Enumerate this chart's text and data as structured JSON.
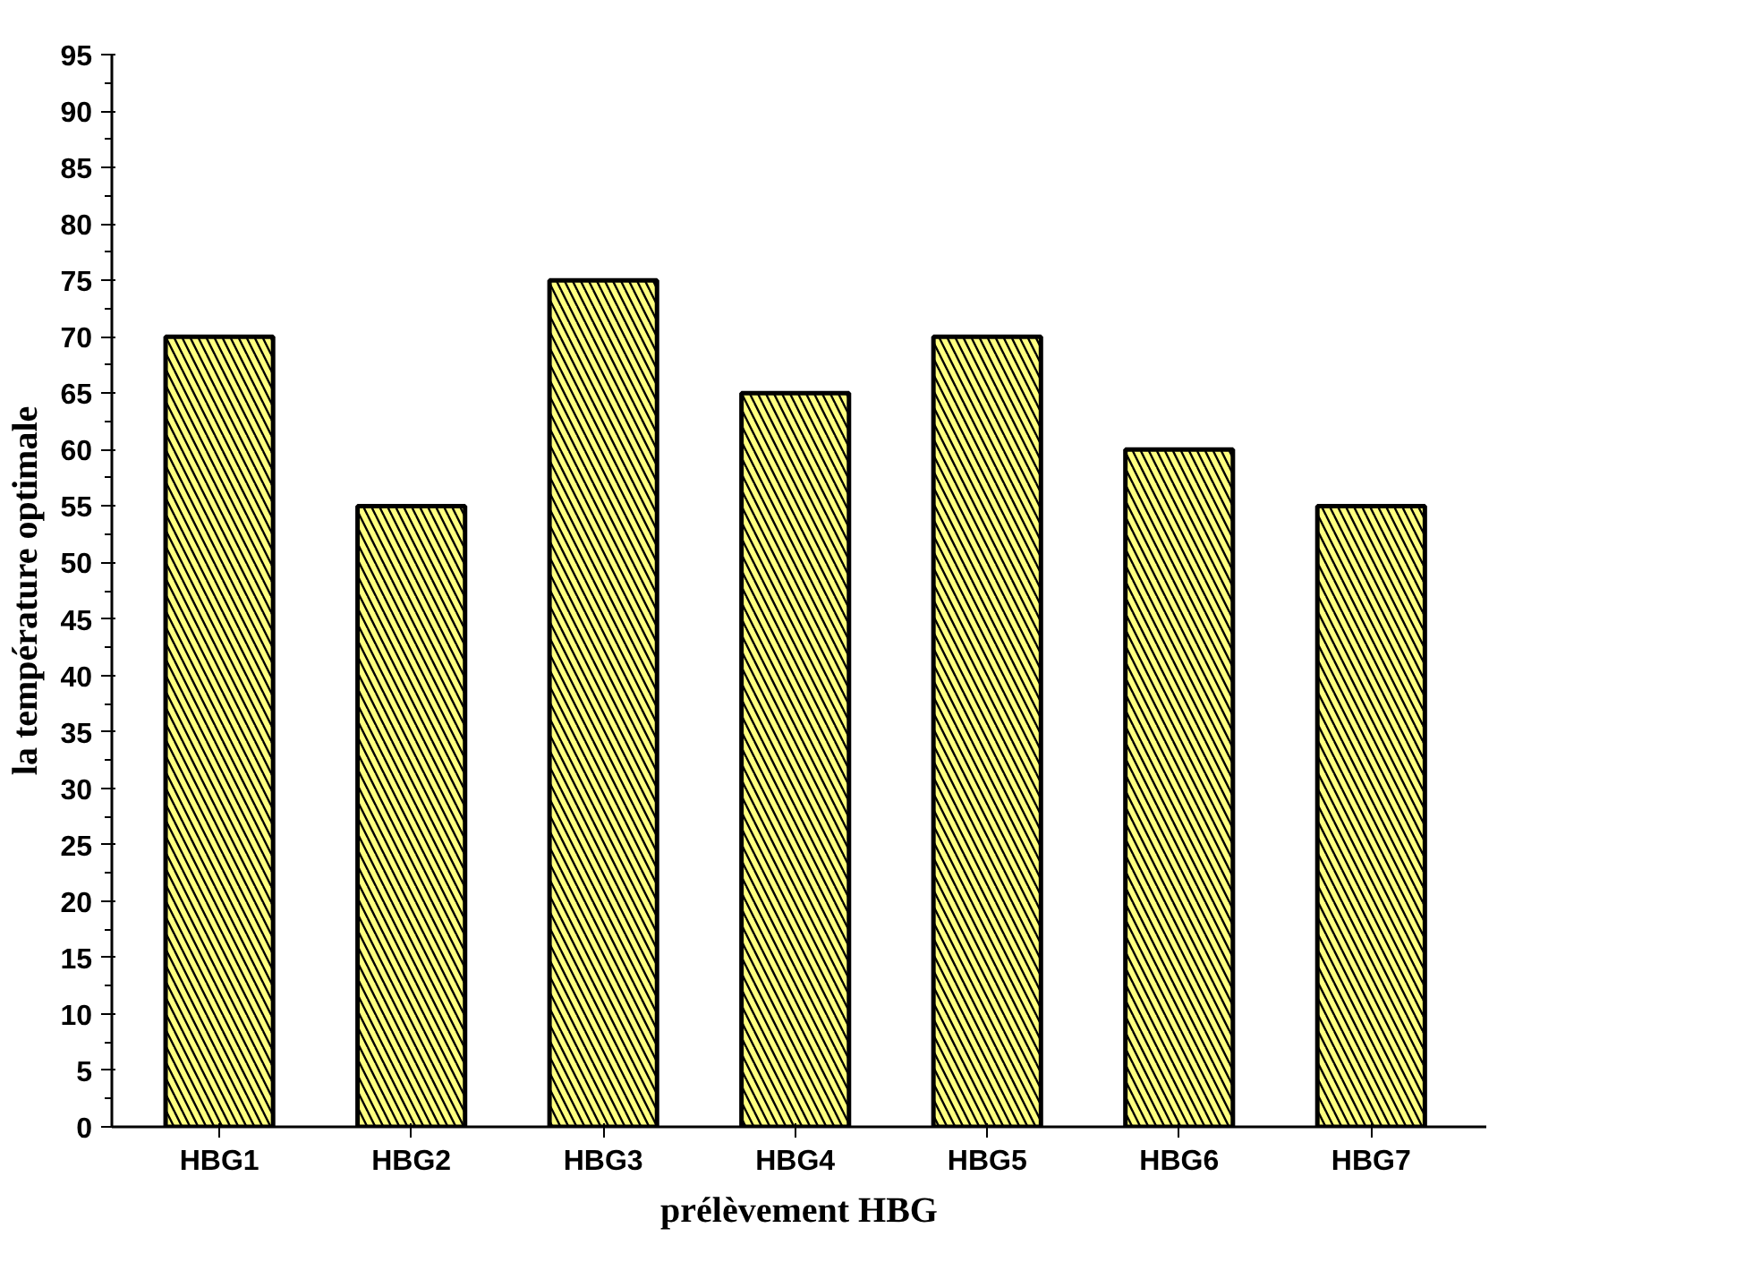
{
  "chart_data": {
    "type": "bar",
    "xlabel": "prélèvement HBG",
    "ylabel": "la température optimale",
    "categories": [
      "HBG1",
      "HBG2",
      "HBG3",
      "HBG4",
      "HBG5",
      "HBG6",
      "HBG7"
    ],
    "values": [
      70,
      55,
      75,
      65,
      70,
      60,
      55
    ],
    "color": "#ffff80",
    "ylim": [
      0,
      95
    ],
    "yticks": [
      0,
      5,
      10,
      15,
      20,
      25,
      30,
      35,
      40,
      45,
      50,
      55,
      60,
      65,
      70,
      75,
      80,
      85,
      90,
      95
    ],
    "grid": false
  }
}
